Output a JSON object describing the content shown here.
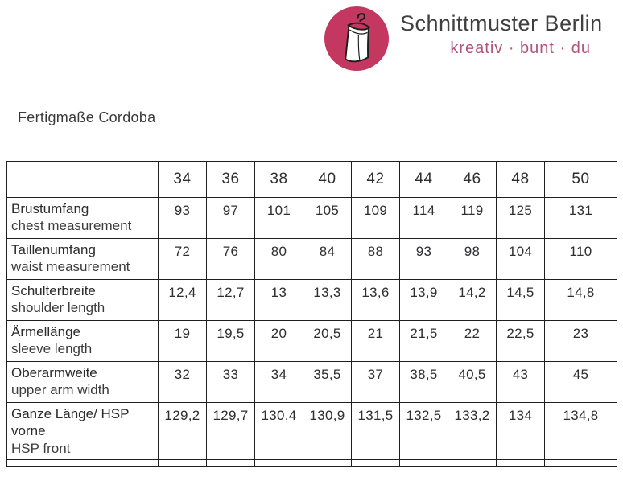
{
  "header": {
    "brand": "Schnittmuster Berlin",
    "tagline": "kreativ · bunt · du",
    "logo_icon": "dress-on-hanger-icon",
    "logo_color": "#c43760",
    "tagline_color": "#b2537a"
  },
  "page_title": "Fertigmaße Cordoba",
  "table": {
    "sizes": [
      "34",
      "36",
      "38",
      "40",
      "42",
      "44",
      "46",
      "48",
      "50"
    ],
    "rows": [
      {
        "label_de": "Brustumfang",
        "label_en": "chest measurement",
        "values": [
          "93",
          "97",
          "101",
          "105",
          "109",
          "114",
          "119",
          "125",
          "131"
        ]
      },
      {
        "label_de": "Taillenumfang",
        "label_en": "waist measurement",
        "values": [
          "72",
          "76",
          "80",
          "84",
          "88",
          "93",
          "98",
          "104",
          "110"
        ]
      },
      {
        "label_de": "Schulterbreite",
        "label_en": "shoulder length",
        "values": [
          "12,4",
          "12,7",
          "13",
          "13,3",
          "13,6",
          "13,9",
          "14,2",
          "14,5",
          "14,8"
        ]
      },
      {
        "label_de": "Ärmellänge",
        "label_en": "sleeve length",
        "values": [
          "19",
          "19,5",
          "20",
          "20,5",
          "21",
          "21,5",
          "22",
          "22,5",
          "23"
        ]
      },
      {
        "label_de": "Oberarmweite",
        "label_en": "upper arm width",
        "values": [
          "32",
          "33",
          "34",
          "35,5",
          "37",
          "38,5",
          "40,5",
          "43",
          "45"
        ]
      },
      {
        "label_de": "Ganze Länge/ HSP vorne",
        "label_en": "HSP front",
        "values": [
          "129,2",
          "129,7",
          "130,4",
          "130,9",
          "131,5",
          "132,5",
          "133,2",
          "134",
          "134,8"
        ]
      }
    ]
  }
}
